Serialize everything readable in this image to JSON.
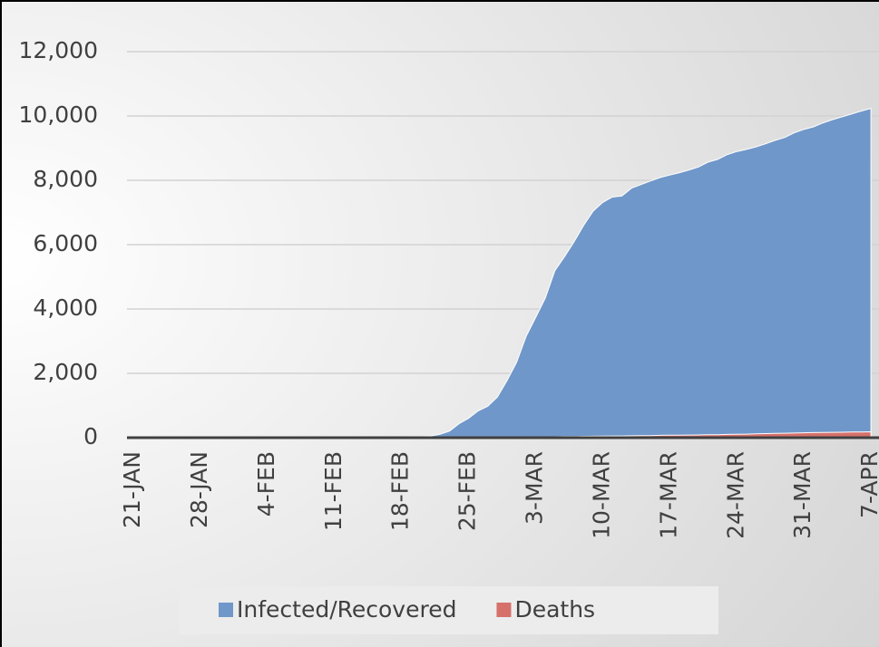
{
  "chart_data": {
    "type": "area",
    "categories": [
      "21-JAN",
      null,
      null,
      null,
      null,
      null,
      null,
      "28-JAN",
      null,
      null,
      null,
      null,
      null,
      null,
      "4-FEB",
      null,
      null,
      null,
      null,
      null,
      null,
      "11-FEB",
      null,
      null,
      null,
      null,
      null,
      null,
      "18-FEB",
      null,
      null,
      null,
      null,
      null,
      null,
      "25-FEB",
      null,
      null,
      null,
      null,
      null,
      null,
      "3-MAR",
      null,
      null,
      null,
      null,
      null,
      null,
      "10-MAR",
      null,
      null,
      null,
      null,
      null,
      null,
      "17-MAR",
      null,
      null,
      null,
      null,
      null,
      null,
      "24-MAR",
      null,
      null,
      null,
      null,
      null,
      null,
      "31-MAR",
      null,
      null,
      null,
      null,
      null,
      null,
      "7-APR"
    ],
    "series": [
      {
        "name": "Infected/Recovered",
        "color": "#7097c9",
        "values": [
          0,
          1,
          1,
          1,
          1,
          2,
          2,
          3,
          4,
          4,
          4,
          4,
          11,
          12,
          15,
          15,
          16,
          19,
          23,
          24,
          24,
          25,
          27,
          28,
          28,
          28,
          28,
          28,
          29,
          30,
          31,
          51,
          104,
          204,
          433,
          602,
          833,
          977,
          1261,
          1766,
          2337,
          3150,
          3736,
          4335,
          5186,
          5621,
          6088,
          6593,
          7041,
          7314,
          7478,
          7513,
          7755,
          7869,
          7979,
          8086,
          8162,
          8236,
          8320,
          8413,
          8565,
          8652,
          8799,
          8897,
          8961,
          9037,
          9137,
          9241,
          9332,
          9478,
          9583,
          9661,
          9786,
          9887,
          9976,
          10062,
          10156,
          10237
        ]
      },
      {
        "name": "Deaths",
        "color": "#d6706b",
        "values": [
          0,
          0,
          0,
          0,
          0,
          0,
          0,
          0,
          0,
          0,
          0,
          0,
          0,
          0,
          0,
          0,
          0,
          0,
          0,
          0,
          0,
          0,
          0,
          0,
          0,
          0,
          0,
          0,
          0,
          0,
          0,
          0,
          1,
          2,
          2,
          6,
          8,
          10,
          12,
          13,
          13,
          16,
          17,
          28,
          28,
          35,
          35,
          42,
          44,
          50,
          53,
          54,
          60,
          66,
          66,
          72,
          75,
          75,
          81,
          84,
          91,
          94,
          102,
          104,
          111,
          120,
          126,
          131,
          139,
          144,
          152,
          158,
          162,
          165,
          169,
          174,
          177,
          183
        ]
      }
    ],
    "ylim": [
      0,
      12000
    ],
    "yticks": [
      0,
      {
        "value": 2000,
        "label": "2,000"
      },
      {
        "value": 4000,
        "label": "4,000"
      },
      {
        "value": 6000,
        "label": "6,000"
      },
      {
        "value": 8000,
        "label": "8,000"
      },
      {
        "value": 10000,
        "label": "10,000"
      },
      {
        "value": 12000,
        "label": "12,000"
      }
    ],
    "grid": true,
    "legend": "bottom"
  }
}
